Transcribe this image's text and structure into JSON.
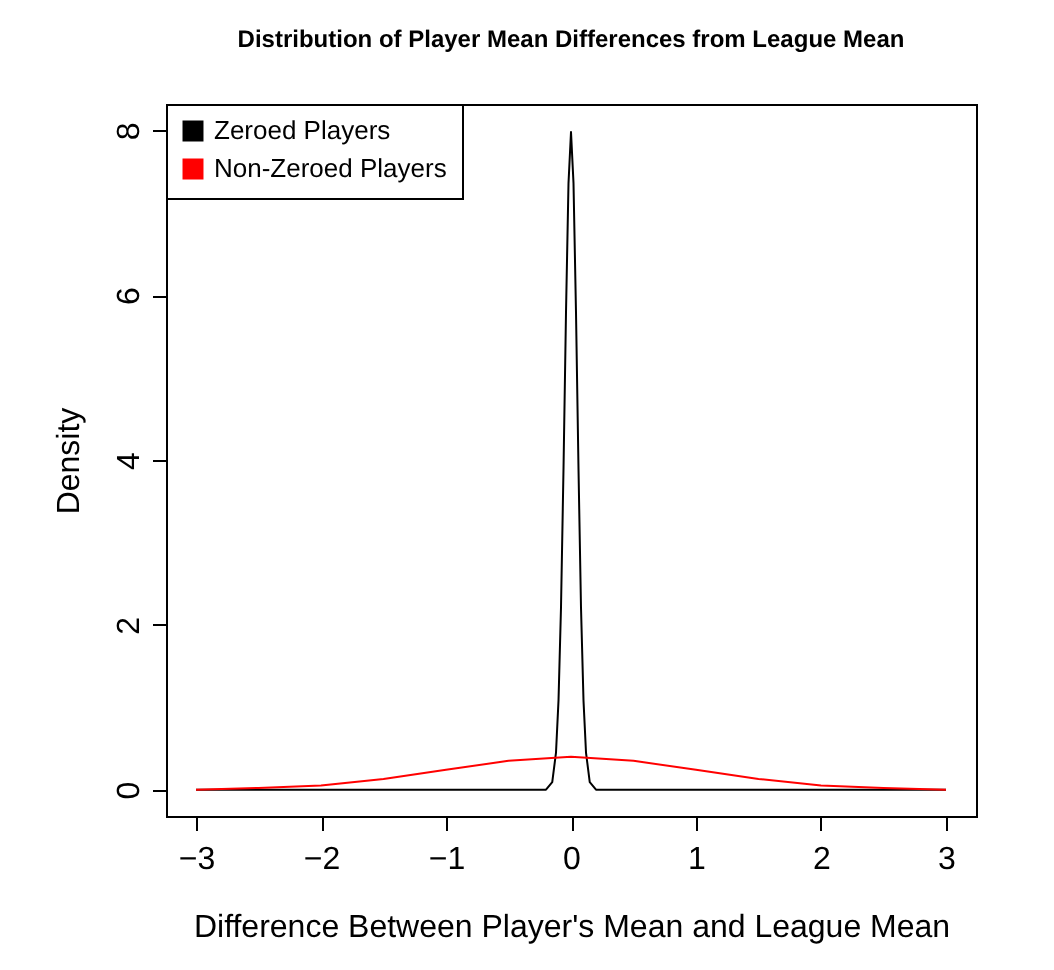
{
  "chart_data": {
    "type": "line",
    "title": "Distribution of Player Mean Differences from League Mean",
    "xlabel": "Difference Between Player's Mean and League Mean",
    "ylabel": "Density",
    "series": [
      {
        "name": "Zeroed Players",
        "color": "#000000",
        "x": [
          -3,
          -1,
          -0.2,
          -0.15,
          -0.12,
          -0.1,
          -0.08,
          -0.06,
          -0.04,
          -0.02,
          0,
          0.02,
          0.04,
          0.06,
          0.08,
          0.1,
          0.12,
          0.15,
          0.2,
          1,
          3
        ],
        "values": [
          0,
          0,
          0,
          0.09,
          0.45,
          1.08,
          2.21,
          3.89,
          5.79,
          7.36,
          7.98,
          7.36,
          5.79,
          3.89,
          2.21,
          1.08,
          0.45,
          0.09,
          0,
          0,
          0
        ]
      },
      {
        "name": "Non-Zeroed Players",
        "color": "#ff0000",
        "x": [
          -3,
          -2.5,
          -2,
          -1.5,
          -1,
          -0.5,
          0,
          0.5,
          1,
          1.5,
          2,
          2.5,
          3
        ],
        "values": [
          0,
          0.02,
          0.05,
          0.13,
          0.24,
          0.35,
          0.4,
          0.35,
          0.24,
          0.13,
          0.05,
          0.02,
          0
        ]
      }
    ],
    "xlim": [
      -3.24,
      3.24
    ],
    "ylim": [
      -0.32,
      8.32
    ],
    "xticks": [
      {
        "value": -3,
        "label": "−3"
      },
      {
        "value": -2,
        "label": "−2"
      },
      {
        "value": -1,
        "label": "−1"
      },
      0,
      1,
      2,
      3
    ],
    "yticks": [
      0,
      2,
      4,
      6,
      8
    ],
    "legend": "top left",
    "marker": "none",
    "line_style": "solid",
    "grid": false
  }
}
